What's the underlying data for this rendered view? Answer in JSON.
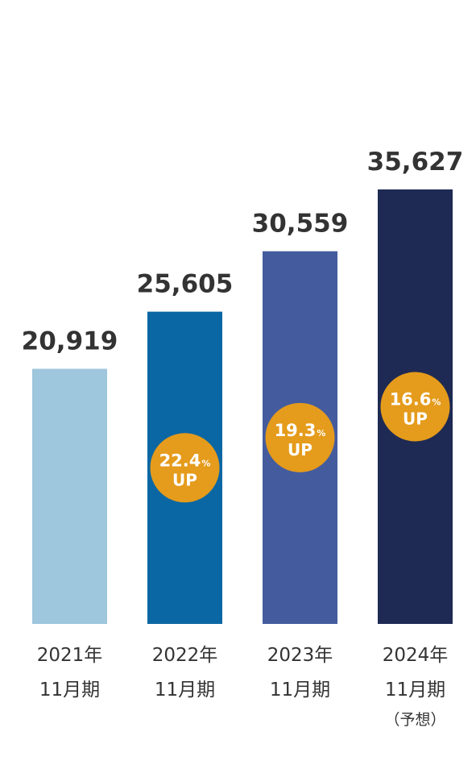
{
  "chart_data": {
    "type": "bar",
    "categories": [
      [
        "2021年",
        "11月期",
        ""
      ],
      [
        "2022年",
        "11月期",
        ""
      ],
      [
        "2023年",
        "11月期",
        ""
      ],
      [
        "2024年",
        "11月期",
        "（予想）"
      ]
    ],
    "values": [
      20919,
      25605,
      30559,
      35627
    ],
    "value_labels": [
      "20,919",
      "25,605",
      "30,559",
      "35,627"
    ],
    "bar_colors": [
      "#9ec6dd",
      "#0b67a3",
      "#445c9e",
      "#1e2a53"
    ],
    "growth_badges": [
      null,
      {
        "value": "22.4",
        "unit": "%",
        "text": "UP"
      },
      {
        "value": "19.3",
        "unit": "%",
        "text": "UP"
      },
      {
        "value": "16.6",
        "unit": "%",
        "text": "UP"
      }
    ],
    "badge_color": "#e59b1b",
    "ylim": [
      0,
      38000
    ],
    "grid": false,
    "title": "",
    "xlabel": "",
    "ylabel": ""
  }
}
